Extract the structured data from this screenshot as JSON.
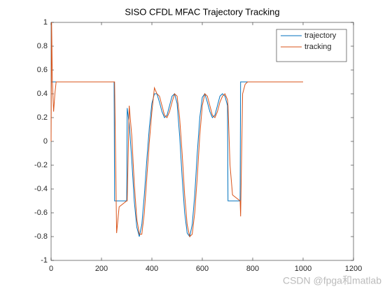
{
  "chart_data": {
    "type": "line",
    "title": "SISO CFDL MFAC Trajectory Tracking",
    "x": [
      0,
      2,
      5,
      10,
      15,
      20,
      30,
      250,
      252,
      260,
      270,
      300,
      302,
      310,
      320,
      330,
      340,
      350,
      360,
      370,
      380,
      390,
      400,
      410,
      420,
      430,
      440,
      450,
      460,
      470,
      480,
      490,
      500,
      510,
      520,
      530,
      540,
      550,
      560,
      570,
      580,
      590,
      600,
      610,
      620,
      630,
      640,
      650,
      660,
      670,
      680,
      690,
      700,
      702,
      710,
      720,
      750,
      752,
      760,
      770,
      780,
      1000
    ],
    "series": [
      {
        "name": "trajectory",
        "color": "#0072BD",
        "values": [
          0.5,
          0.5,
          0.5,
          0.5,
          0.5,
          0.5,
          0.5,
          0.5,
          -0.5,
          -0.5,
          -0.5,
          -0.5,
          0.28,
          0.15,
          -0.15,
          -0.5,
          -0.72,
          -0.8,
          -0.7,
          -0.45,
          -0.15,
          0.12,
          0.32,
          0.4,
          0.4,
          0.33,
          0.25,
          0.2,
          0.22,
          0.3,
          0.38,
          0.4,
          0.32,
          0.05,
          -0.3,
          -0.6,
          -0.77,
          -0.8,
          -0.7,
          -0.45,
          -0.1,
          0.2,
          0.37,
          0.4,
          0.33,
          0.25,
          0.2,
          0.22,
          0.3,
          0.38,
          0.4,
          0.38,
          0.3,
          -0.5,
          -0.5,
          -0.5,
          -0.5,
          0.5,
          0.5,
          0.5,
          0.5,
          0.5
        ]
      },
      {
        "name": "tracking",
        "color": "#D95319",
        "values": [
          0,
          1,
          0.5,
          0.25,
          0.4,
          0.5,
          0.5,
          0.5,
          0.5,
          -0.77,
          -0.55,
          -0.5,
          -0.5,
          0.3,
          0.05,
          -0.35,
          -0.65,
          -0.78,
          -0.78,
          -0.6,
          -0.3,
          0,
          0.25,
          0.45,
          0.4,
          0.38,
          0.3,
          0.22,
          0.2,
          0.25,
          0.33,
          0.4,
          0.38,
          0.2,
          -0.1,
          -0.45,
          -0.7,
          -0.8,
          -0.78,
          -0.6,
          -0.3,
          0.05,
          0.3,
          0.4,
          0.38,
          0.3,
          0.22,
          0.2,
          0.25,
          0.33,
          0.38,
          0.4,
          0.35,
          0.3,
          -0.2,
          -0.45,
          -0.5,
          -0.63,
          0.4,
          0.48,
          0.5,
          0.5
        ]
      }
    ],
    "xlim": [
      0,
      1200
    ],
    "xticks": [
      0,
      200,
      400,
      600,
      800,
      1000,
      1200
    ],
    "ylim": [
      -1,
      1
    ],
    "yticks": [
      -1,
      -0.8,
      -0.6,
      -0.4,
      -0.2,
      0,
      0.2,
      0.4,
      0.6,
      0.8,
      1
    ],
    "legend": "top-right",
    "grid": false
  },
  "watermark": "CSDN @fpga和matlab"
}
